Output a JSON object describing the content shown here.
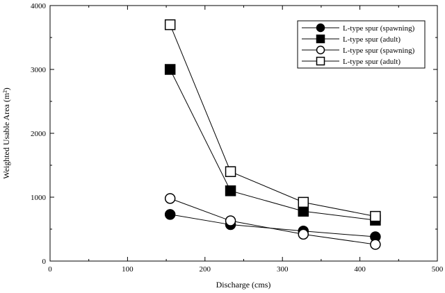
{
  "chart_data": {
    "type": "line",
    "title": "",
    "xlabel": "Discharge (cms)",
    "ylabel": "Weighted Usable Area (m²)",
    "xlim": [
      0,
      500
    ],
    "ylim": [
      0,
      4000
    ],
    "x_ticks": [
      0,
      100,
      200,
      300,
      400,
      500
    ],
    "y_ticks": [
      0,
      1000,
      2000,
      3000,
      4000
    ],
    "x_tick_labels": [
      "0",
      "100",
      "200",
      "300",
      "400",
      "500"
    ],
    "y_tick_labels": [
      "0",
      "1000",
      "2000",
      "3000",
      "4000"
    ],
    "grid": false,
    "legend_position": "top-right",
    "series": [
      {
        "name": "L-type spur (spawning)",
        "marker": "circle-filled",
        "x": [
          155,
          233,
          327,
          420
        ],
        "y": [
          730,
          570,
          470,
          380
        ]
      },
      {
        "name": "L-type spur (adult)",
        "marker": "square-filled",
        "x": [
          155,
          233,
          327,
          420
        ],
        "y": [
          3000,
          1100,
          780,
          640
        ]
      },
      {
        "name": "L-type spur (spawning)",
        "marker": "circle-open",
        "x": [
          155,
          233,
          327,
          420
        ],
        "y": [
          980,
          630,
          420,
          260
        ]
      },
      {
        "name": "L-type spur (adult)",
        "marker": "square-open",
        "x": [
          155,
          233,
          327,
          420
        ],
        "y": [
          3700,
          1400,
          920,
          700
        ]
      }
    ]
  }
}
